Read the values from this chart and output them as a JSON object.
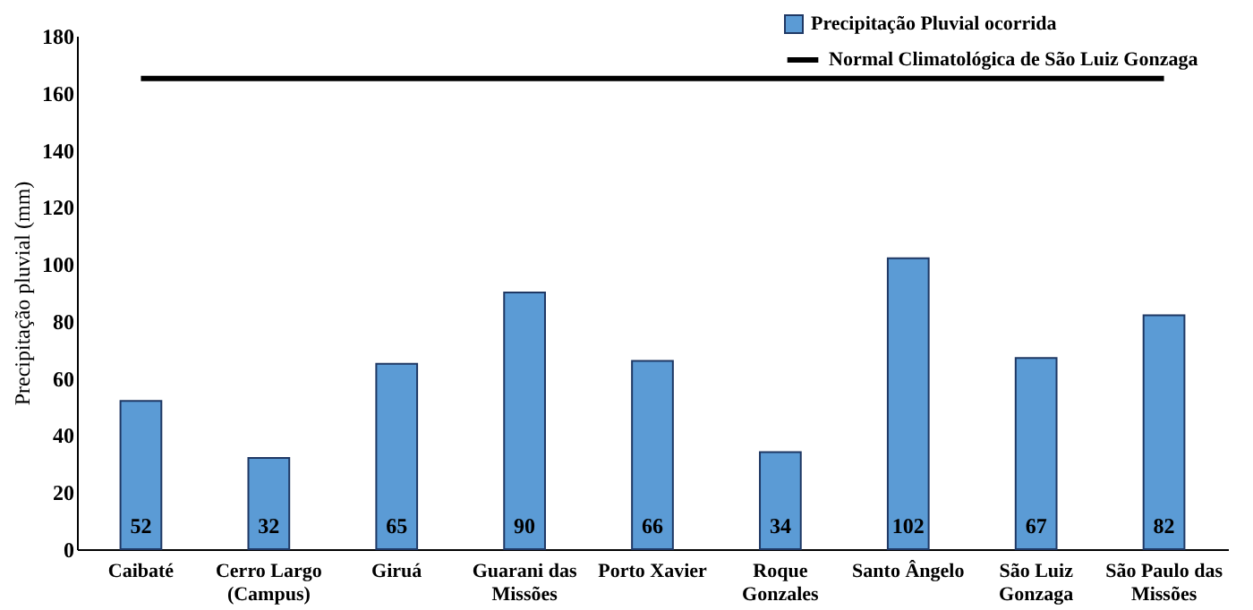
{
  "chart_data": {
    "type": "bar",
    "ylabel": "Precipitação pluvial  (mm)",
    "categories": [
      "Caibaté",
      "Cerro Largo (Campus)",
      "Giruá",
      "Guarani das Missões",
      "Porto Xavier",
      "Roque Gonzales",
      "Santo Ângelo",
      "São Luiz Gonzaga",
      "São Paulo das Missões"
    ],
    "series": [
      {
        "name": "Precipitação Pluvial ocorrida",
        "color": "#5b9bd5",
        "values": [
          52,
          32,
          65,
          90,
          66,
          34,
          102,
          67,
          82
        ],
        "value_labels": [
          "52",
          "32",
          "65",
          "90",
          "66",
          "34",
          "102",
          "67",
          "82"
        ]
      },
      {
        "name": "Normal Climatológica de São Luiz Gonzaga",
        "type": "line",
        "color": "#000000",
        "values": [
          165,
          165,
          165,
          165,
          165,
          165,
          165,
          165,
          165
        ]
      }
    ],
    "ylim": [
      0,
      180
    ],
    "yticks": [
      0,
      20,
      40,
      60,
      80,
      100,
      120,
      140,
      160,
      180
    ],
    "grid": false,
    "legend": "top right"
  }
}
